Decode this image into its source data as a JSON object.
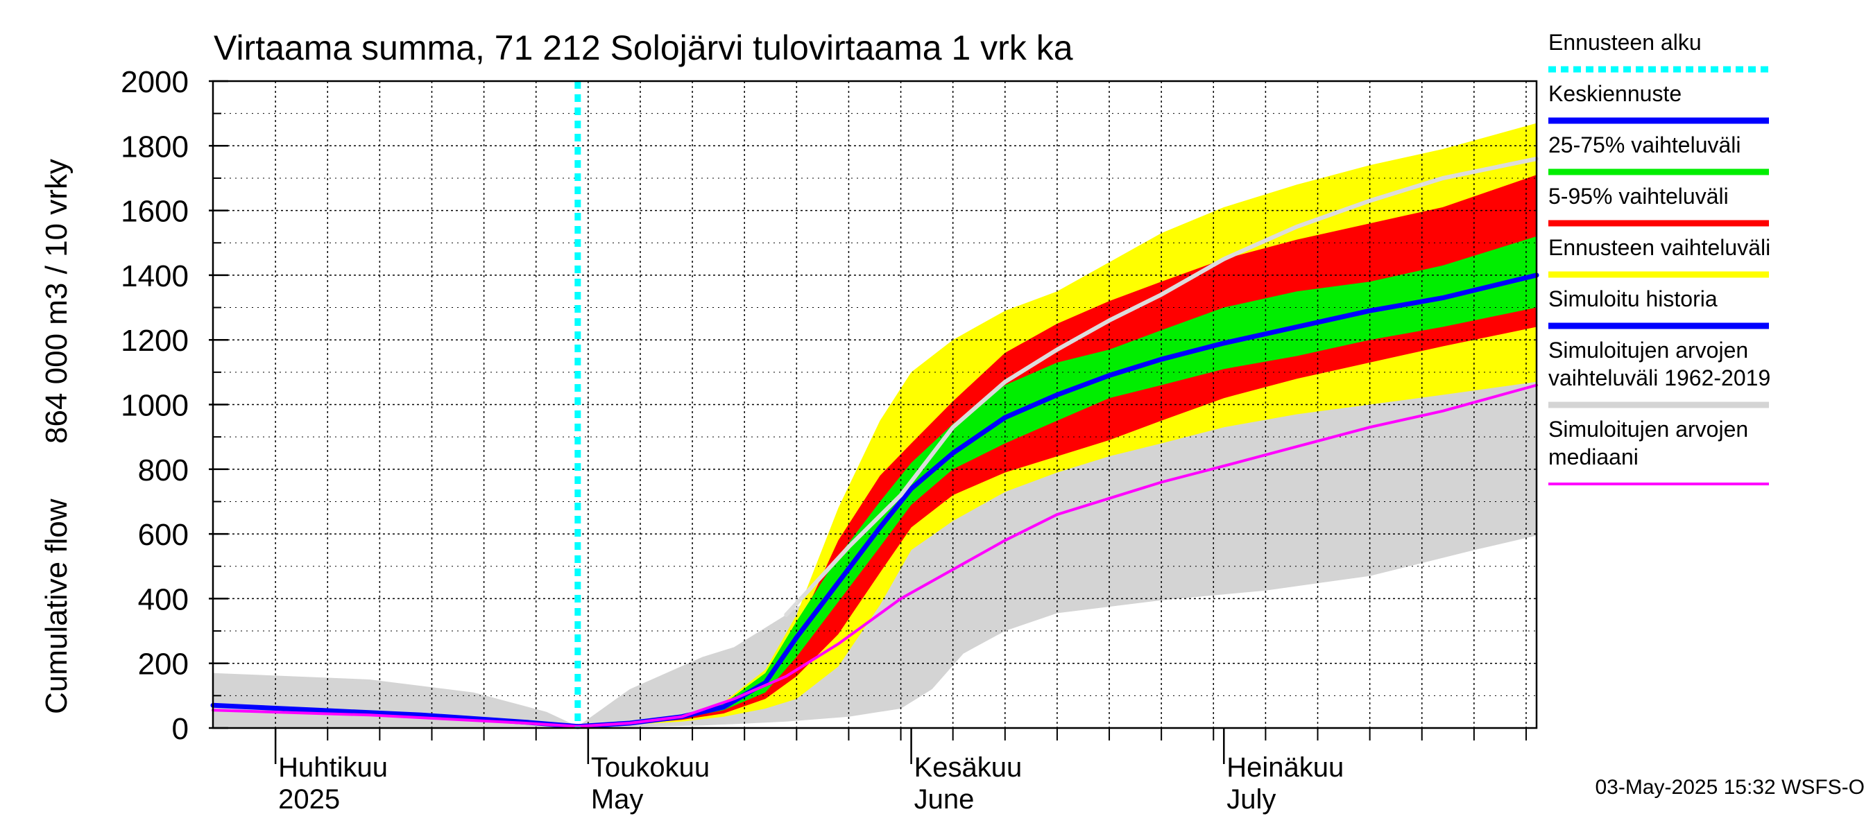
{
  "chart_data": {
    "type": "area",
    "title": "Virtaama summa, 71 212 Solojärvi tulovirtaama 1 vrk ka",
    "ylabel_top": "864 000 m3 / 10 vrky",
    "ylabel_bottom": "Cumulative flow",
    "ylim": [
      0,
      2000
    ],
    "yticks": [
      0,
      200,
      400,
      600,
      800,
      1000,
      1200,
      1400,
      1600,
      1800,
      2000
    ],
    "xlim": [
      "2025-03-26",
      "2025-07-31"
    ],
    "month_labels": [
      {
        "date": "2025-04-01",
        "fi": "Huhtikuu",
        "en": "2025"
      },
      {
        "date": "2025-05-01",
        "fi": "Toukokuu",
        "en": "May"
      },
      {
        "date": "2025-06-01",
        "fi": "Kesäkuu",
        "en": "June"
      },
      {
        "date": "2025-07-01",
        "fi": "Heinäkuu",
        "en": "July"
      }
    ],
    "forecast_start": "2025-04-30",
    "grid": true,
    "legend_position": "right",
    "footer": "03-May-2025 15:32 WSFS-O",
    "series": [
      {
        "key": "hist_range",
        "name": "Simuloitujen arvojen vaihteluväli 1962-2019",
        "kind": "band",
        "color": "#d4d4d4",
        "x": [
          "2025-03-26",
          "2025-04-10",
          "2025-04-20",
          "2025-04-27",
          "2025-04-30",
          "2025-05-05",
          "2025-05-12",
          "2025-05-15",
          "2025-05-20",
          "2025-05-26",
          "2025-05-31",
          "2025-06-03",
          "2025-06-06",
          "2025-06-10",
          "2025-06-15",
          "2025-06-25",
          "2025-07-05",
          "2025-07-15",
          "2025-07-25",
          "2025-07-31"
        ],
        "low": [
          0,
          0,
          0,
          0,
          0,
          3,
          8,
          12,
          20,
          35,
          60,
          120,
          230,
          300,
          355,
          395,
          425,
          470,
          550,
          595
        ],
        "high": [
          170,
          150,
          110,
          50,
          5,
          120,
          220,
          250,
          350,
          480,
          580,
          700,
          760,
          800,
          880,
          1000,
          1080,
          1180,
          1280,
          1330
        ]
      },
      {
        "key": "ens_range",
        "name": "Ennusteen vaihteluväli",
        "kind": "band",
        "color": "#ffff00",
        "x": [
          "2025-04-30",
          "2025-05-05",
          "2025-05-10",
          "2025-05-14",
          "2025-05-18",
          "2025-05-21",
          "2025-05-25",
          "2025-05-29",
          "2025-06-01",
          "2025-06-05",
          "2025-06-10",
          "2025-06-15",
          "2025-06-20",
          "2025-06-25",
          "2025-07-01",
          "2025-07-08",
          "2025-07-15",
          "2025-07-22",
          "2025-07-31"
        ],
        "low": [
          5,
          10,
          20,
          35,
          60,
          90,
          190,
          380,
          550,
          640,
          730,
          790,
          840,
          880,
          930,
          970,
          1000,
          1030,
          1070
        ],
        "high": [
          5,
          12,
          40,
          80,
          180,
          350,
          680,
          950,
          1100,
          1200,
          1290,
          1350,
          1440,
          1530,
          1610,
          1680,
          1740,
          1790,
          1870
        ]
      },
      {
        "key": "p5_95",
        "name": "5-95% vaihteluväli",
        "kind": "band",
        "color": "#ff0000",
        "x": [
          "2025-04-30",
          "2025-05-05",
          "2025-05-10",
          "2025-05-14",
          "2025-05-18",
          "2025-05-21",
          "2025-05-25",
          "2025-05-29",
          "2025-06-01",
          "2025-06-05",
          "2025-06-10",
          "2025-06-15",
          "2025-06-20",
          "2025-06-25",
          "2025-07-01",
          "2025-07-08",
          "2025-07-15",
          "2025-07-22",
          "2025-07-31"
        ],
        "low": [
          5,
          12,
          25,
          45,
          90,
          160,
          290,
          480,
          620,
          720,
          790,
          840,
          890,
          950,
          1020,
          1080,
          1130,
          1180,
          1240
        ],
        "high": [
          5,
          12,
          30,
          65,
          150,
          300,
          580,
          780,
          880,
          1010,
          1160,
          1250,
          1320,
          1380,
          1450,
          1510,
          1560,
          1610,
          1710
        ]
      },
      {
        "key": "p25_75",
        "name": "25-75% vaihteluväli",
        "kind": "band",
        "color": "#00ee00",
        "x": [
          "2025-04-30",
          "2025-05-05",
          "2025-05-10",
          "2025-05-14",
          "2025-05-18",
          "2025-05-21",
          "2025-05-25",
          "2025-05-29",
          "2025-06-01",
          "2025-06-05",
          "2025-06-10",
          "2025-06-15",
          "2025-06-20",
          "2025-06-25",
          "2025-07-01",
          "2025-07-08",
          "2025-07-15",
          "2025-07-22",
          "2025-07-31"
        ],
        "low": [
          5,
          12,
          30,
          55,
          110,
          220,
          390,
          560,
          690,
          800,
          880,
          950,
          1020,
          1060,
          1110,
          1150,
          1200,
          1240,
          1300
        ],
        "high": [
          5,
          12,
          35,
          75,
          170,
          330,
          530,
          700,
          820,
          940,
          1060,
          1130,
          1170,
          1230,
          1300,
          1350,
          1380,
          1430,
          1520
        ]
      },
      {
        "key": "mean",
        "name": "Keskiennuste",
        "kind": "line",
        "color": "#0000ff",
        "width": 7,
        "x": [
          "2025-04-30",
          "2025-05-05",
          "2025-05-10",
          "2025-05-14",
          "2025-05-18",
          "2025-05-21",
          "2025-05-25",
          "2025-05-29",
          "2025-06-01",
          "2025-06-05",
          "2025-06-10",
          "2025-06-15",
          "2025-06-20",
          "2025-06-25",
          "2025-07-01",
          "2025-07-08",
          "2025-07-15",
          "2025-07-22",
          "2025-07-31"
        ],
        "y": [
          5,
          15,
          35,
          65,
          140,
          280,
          450,
          620,
          740,
          850,
          960,
          1030,
          1090,
          1140,
          1190,
          1240,
          1290,
          1330,
          1400
        ]
      },
      {
        "key": "simulated",
        "name": "Simuloitu historia",
        "kind": "line",
        "color": "#0000ff",
        "width": 7,
        "x": [
          "2025-03-26",
          "2025-04-05",
          "2025-04-15",
          "2025-04-25",
          "2025-04-30"
        ],
        "y": [
          70,
          55,
          40,
          18,
          5
        ]
      },
      {
        "key": "hist_max_line",
        "name": "",
        "kind": "line",
        "color": "#dcdcdc",
        "width": 6,
        "x": [
          "2025-05-20",
          "2025-05-26",
          "2025-05-31",
          "2025-06-05",
          "2025-06-10",
          "2025-06-15",
          "2025-06-20",
          "2025-06-25",
          "2025-07-01",
          "2025-07-08",
          "2025-07-15",
          "2025-07-22",
          "2025-07-31"
        ],
        "y": [
          350,
          560,
          720,
          930,
          1070,
          1170,
          1260,
          1340,
          1450,
          1550,
          1630,
          1700,
          1760
        ]
      },
      {
        "key": "median",
        "name": "Simuloitujen arvojen mediaani",
        "kind": "line",
        "color": "#ff00ff",
        "width": 4,
        "x": [
          "2025-03-26",
          "2025-04-10",
          "2025-04-25",
          "2025-04-30",
          "2025-05-05",
          "2025-05-10",
          "2025-05-15",
          "2025-05-20",
          "2025-05-25",
          "2025-05-31",
          "2025-06-05",
          "2025-06-10",
          "2025-06-15",
          "2025-06-20",
          "2025-06-25",
          "2025-07-01",
          "2025-07-08",
          "2025-07-15",
          "2025-07-22",
          "2025-07-31"
        ],
        "y": [
          55,
          40,
          15,
          5,
          15,
          35,
          90,
          160,
          260,
          400,
          490,
          580,
          660,
          710,
          760,
          810,
          870,
          930,
          980,
          1060
        ]
      }
    ],
    "legend": [
      {
        "label": "Ennusteen alku",
        "color": "#00ffff",
        "style": "dotted"
      },
      {
        "label": "Keskiennuste",
        "color": "#0000ff",
        "style": "solid"
      },
      {
        "label": "25-75% vaihteluväli",
        "color": "#00ee00",
        "style": "solid"
      },
      {
        "label": "5-95% vaihteluväli",
        "color": "#ff0000",
        "style": "solid"
      },
      {
        "label": "Ennusteen vaihteluväli",
        "color": "#ffff00",
        "style": "solid"
      },
      {
        "label": "Simuloitu historia",
        "color": "#0000ff",
        "style": "solid"
      },
      {
        "label": "Simuloitujen arvojen vaihteluväli 1962-2019",
        "label_lines": [
          "Simuloitujen arvojen",
          "vaihteluväli 1962-2019"
        ],
        "color": "#d4d4d4",
        "style": "solid"
      },
      {
        "label": "Simuloitujen arvojen mediaani",
        "label_lines": [
          "Simuloitujen arvojen",
          "mediaani"
        ],
        "color": "#ff00ff",
        "style": "solid",
        "thin": true
      }
    ]
  }
}
